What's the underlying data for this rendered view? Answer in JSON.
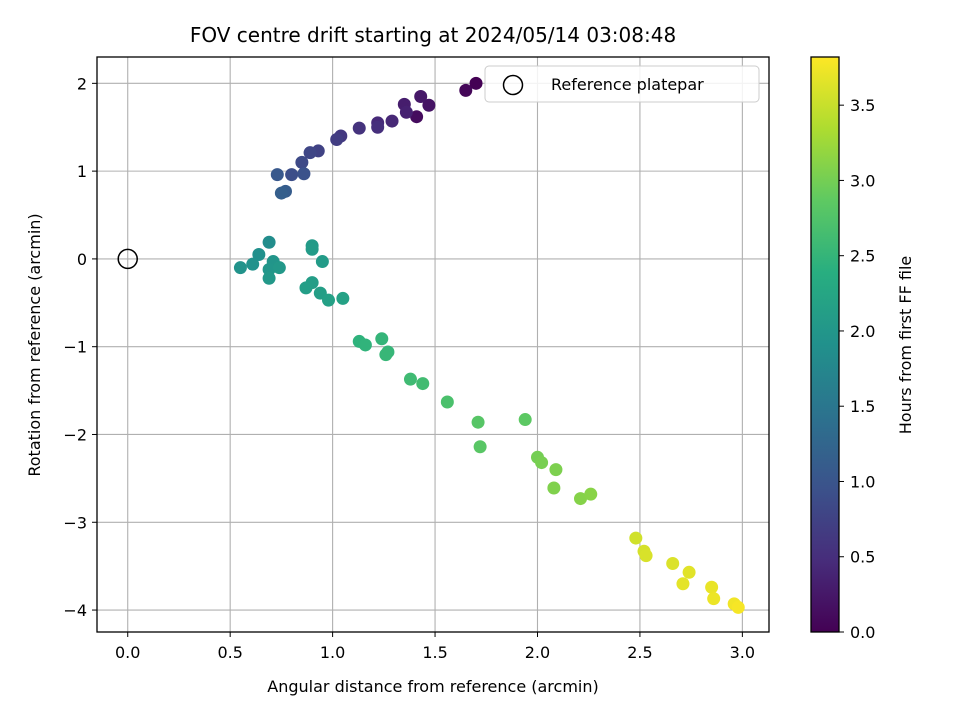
{
  "chart_data": {
    "type": "scatter",
    "title": "FOV centre drift starting at 2024/05/14 03:08:48",
    "xlabel": "Angular distance from reference (arcmin)",
    "ylabel": "Rotation from reference (arcmin)",
    "xlim": [
      -0.15,
      3.13
    ],
    "ylim": [
      -4.25,
      2.3
    ],
    "xticks": [
      0.0,
      0.5,
      1.0,
      1.5,
      2.0,
      2.5,
      3.0
    ],
    "xtick_labels": [
      "0.0",
      "0.5",
      "1.0",
      "1.5",
      "2.0",
      "2.5",
      "3.0"
    ],
    "yticks": [
      -4,
      -3,
      -2,
      -1,
      0,
      1,
      2
    ],
    "ytick_labels": [
      "−4",
      "−3",
      "−2",
      "−1",
      "0",
      "1",
      "2"
    ],
    "grid": true,
    "legend": {
      "position": "top-right",
      "label": "Reference platepar"
    },
    "reference_point": {
      "x": 0.0,
      "y": 0.0,
      "label": "Reference platepar"
    },
    "colorbar": {
      "label": "Hours from first FF file",
      "colormap": "viridis",
      "range": [
        0.0,
        3.82
      ],
      "ticks": [
        0.0,
        0.5,
        1.0,
        1.5,
        2.0,
        2.5,
        3.0,
        3.5
      ],
      "tick_labels": [
        "0.0",
        "0.5",
        "1.0",
        "1.5",
        "2.0",
        "2.5",
        "3.0",
        "3.5"
      ]
    },
    "points": [
      {
        "x": 1.7,
        "y": 2.0,
        "hours": 0.0
      },
      {
        "x": 1.65,
        "y": 1.92,
        "hours": 0.05
      },
      {
        "x": 1.41,
        "y": 1.62,
        "hours": 0.12
      },
      {
        "x": 1.47,
        "y": 1.75,
        "hours": 0.2
      },
      {
        "x": 1.43,
        "y": 1.85,
        "hours": 0.25
      },
      {
        "x": 1.35,
        "y": 1.76,
        "hours": 0.3
      },
      {
        "x": 1.36,
        "y": 1.67,
        "hours": 0.35
      },
      {
        "x": 1.29,
        "y": 1.57,
        "hours": 0.42
      },
      {
        "x": 1.22,
        "y": 1.55,
        "hours": 0.45
      },
      {
        "x": 1.22,
        "y": 1.5,
        "hours": 0.5
      },
      {
        "x": 1.13,
        "y": 1.49,
        "hours": 0.55
      },
      {
        "x": 1.04,
        "y": 1.4,
        "hours": 0.62
      },
      {
        "x": 1.02,
        "y": 1.36,
        "hours": 0.68
      },
      {
        "x": 0.93,
        "y": 1.23,
        "hours": 0.75
      },
      {
        "x": 0.89,
        "y": 1.21,
        "hours": 0.8
      },
      {
        "x": 0.85,
        "y": 1.1,
        "hours": 0.85
      },
      {
        "x": 0.8,
        "y": 0.96,
        "hours": 0.9
      },
      {
        "x": 0.86,
        "y": 0.97,
        "hours": 0.95
      },
      {
        "x": 0.73,
        "y": 0.96,
        "hours": 1.05
      },
      {
        "x": 0.77,
        "y": 0.77,
        "hours": 1.1
      },
      {
        "x": 0.75,
        "y": 0.75,
        "hours": 1.15
      },
      {
        "x": 0.69,
        "y": 0.19,
        "hours": 1.85
      },
      {
        "x": 0.64,
        "y": 0.05,
        "hours": 1.9
      },
      {
        "x": 0.61,
        "y": -0.06,
        "hours": 1.92
      },
      {
        "x": 0.55,
        "y": -0.1,
        "hours": 1.95
      },
      {
        "x": 0.71,
        "y": -0.03,
        "hours": 1.97
      },
      {
        "x": 0.69,
        "y": -0.12,
        "hours": 2.0
      },
      {
        "x": 0.74,
        "y": -0.1,
        "hours": 2.02
      },
      {
        "x": 0.69,
        "y": -0.22,
        "hours": 2.03
      },
      {
        "x": 0.9,
        "y": 0.15,
        "hours": 2.05
      },
      {
        "x": 0.9,
        "y": 0.11,
        "hours": 2.07
      },
      {
        "x": 0.95,
        "y": -0.03,
        "hours": 2.08
      },
      {
        "x": 0.9,
        "y": -0.27,
        "hours": 2.1
      },
      {
        "x": 0.87,
        "y": -0.33,
        "hours": 2.12
      },
      {
        "x": 0.94,
        "y": -0.39,
        "hours": 2.13
      },
      {
        "x": 0.98,
        "y": -0.47,
        "hours": 2.15
      },
      {
        "x": 1.05,
        "y": -0.45,
        "hours": 2.17
      },
      {
        "x": 1.13,
        "y": -0.94,
        "hours": 2.45
      },
      {
        "x": 1.16,
        "y": -0.98,
        "hours": 2.47
      },
      {
        "x": 1.24,
        "y": -0.91,
        "hours": 2.5
      },
      {
        "x": 1.27,
        "y": -1.06,
        "hours": 2.52
      },
      {
        "x": 1.26,
        "y": -1.09,
        "hours": 2.53
      },
      {
        "x": 1.38,
        "y": -1.37,
        "hours": 2.6
      },
      {
        "x": 1.44,
        "y": -1.42,
        "hours": 2.62
      },
      {
        "x": 1.56,
        "y": -1.63,
        "hours": 2.7
      },
      {
        "x": 1.71,
        "y": -1.86,
        "hours": 2.8
      },
      {
        "x": 1.72,
        "y": -2.14,
        "hours": 2.82
      },
      {
        "x": 1.94,
        "y": -1.83,
        "hours": 2.85
      },
      {
        "x": 2.0,
        "y": -2.26,
        "hours": 3.0
      },
      {
        "x": 2.02,
        "y": -2.32,
        "hours": 3.02
      },
      {
        "x": 2.09,
        "y": -2.4,
        "hours": 3.05
      },
      {
        "x": 2.08,
        "y": -2.61,
        "hours": 3.07
      },
      {
        "x": 2.21,
        "y": -2.73,
        "hours": 3.1
      },
      {
        "x": 2.26,
        "y": -2.68,
        "hours": 3.12
      },
      {
        "x": 2.48,
        "y": -3.18,
        "hours": 3.55
      },
      {
        "x": 2.52,
        "y": -3.33,
        "hours": 3.58
      },
      {
        "x": 2.53,
        "y": -3.38,
        "hours": 3.6
      },
      {
        "x": 2.66,
        "y": -3.47,
        "hours": 3.62
      },
      {
        "x": 2.74,
        "y": -3.57,
        "hours": 3.65
      },
      {
        "x": 2.71,
        "y": -3.7,
        "hours": 3.67
      },
      {
        "x": 2.85,
        "y": -3.74,
        "hours": 3.7
      },
      {
        "x": 2.86,
        "y": -3.87,
        "hours": 3.72
      },
      {
        "x": 2.96,
        "y": -3.93,
        "hours": 3.75
      },
      {
        "x": 2.98,
        "y": -3.97,
        "hours": 3.78
      }
    ]
  }
}
